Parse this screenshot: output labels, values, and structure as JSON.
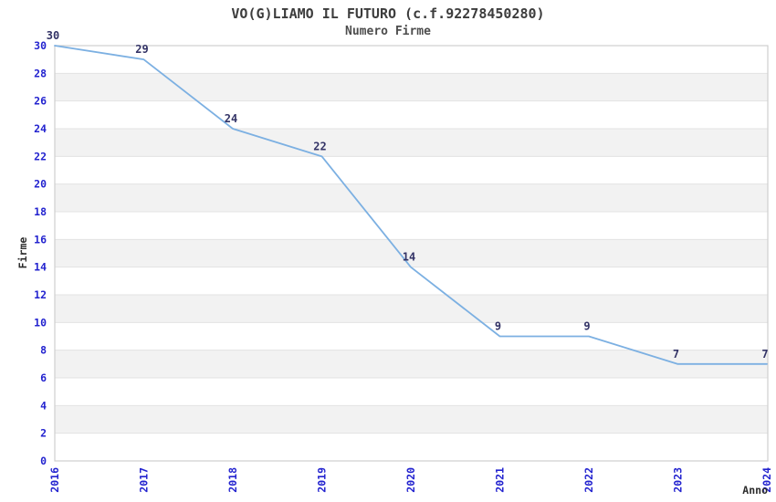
{
  "header": {
    "title": "VO(G)LIAMO IL FUTURO (c.f.92278450280)",
    "subtitle": "Numero Firme"
  },
  "chart_data": {
    "type": "line",
    "title": "VO(G)LIAMO IL FUTURO (c.f.92278450280)",
    "subtitle": "Numero Firme",
    "xlabel": "Anno",
    "ylabel": "Firme",
    "categories": [
      "2016",
      "2017",
      "2018",
      "2019",
      "2020",
      "2021",
      "2022",
      "2023",
      "2024"
    ],
    "values": [
      30,
      29,
      24,
      22,
      14,
      9,
      9,
      7,
      7
    ],
    "data_labels": [
      "30",
      "29",
      "24",
      "22",
      "14",
      "9",
      "9",
      "7",
      "7"
    ],
    "ylim": [
      0,
      30
    ],
    "ytick_step": 2,
    "grid": true,
    "banded_background": true,
    "legend_position": "none",
    "colors": {
      "line": "#7cb0e2",
      "tick_label": "#2323cf",
      "data_label": "#333366",
      "band": "#f2f2f2",
      "gridline": "#e3e3e3",
      "border": "#cfcfcf",
      "title_text": "#3c3c3c",
      "axis_title_text": "#2b2b2b",
      "background": "#ffffff"
    }
  }
}
